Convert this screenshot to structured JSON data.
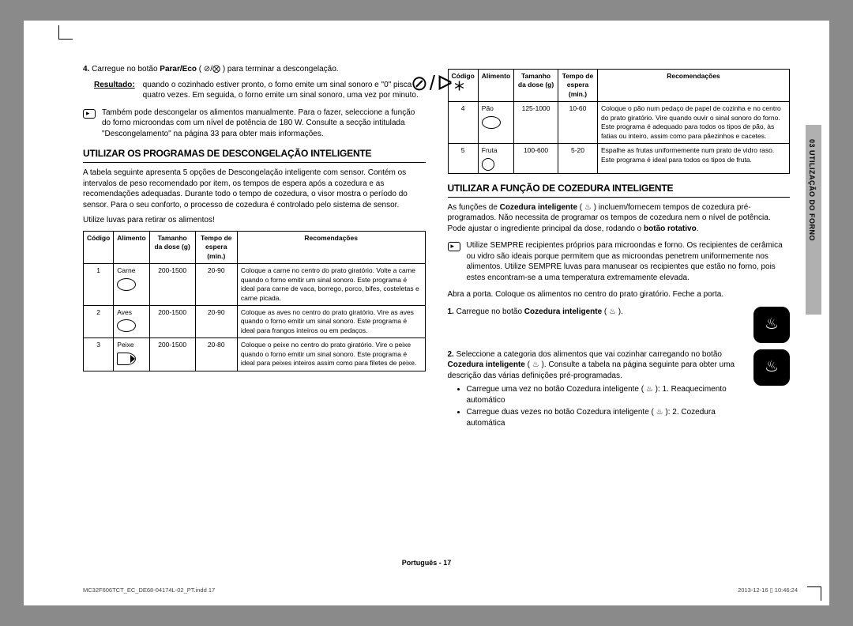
{
  "left": {
    "step4_num": "4.",
    "step4_pre": "Carregue no botão ",
    "step4_bold": "Parar/Eco",
    "step4_post": " ( ⊘/⨂ ) para terminar a descongelação.",
    "result_label": "Resultado:",
    "result_text": "quando o cozinhado estiver pronto, o forno emite um sinal sonoro e \"0\" pisca quatro vezes. Em seguida, o forno emite um sinal sonoro, uma vez por minuto.",
    "note": "Também pode descongelar os alimentos manualmente. Para o fazer, seleccione a função do forno microondas com um nível de potência de 180 W. Consulte a secção intitulada \"Descongelamento\" na página 33 para obter mais informações.",
    "h2": "UTILIZAR OS PROGRAMAS DE DESCONGELAÇÃO INTELIGENTE",
    "intro": "A tabela seguinte apresenta 5 opções de Descongelação inteligente com sensor. Contém os intervalos de peso recomendado por item, os tempos de espera após a cozedura e as recomendações adequadas. Durante todo o tempo de cozedura, o visor mostra o período do sensor. Para o seu conforto, o processo de cozedura é controlado pelo sistema de sensor.",
    "intro2": "Utilize luvas para retirar os alimentos!",
    "top_btn_glyph": "⊘/ᐅ⁎"
  },
  "headers": {
    "c0": "Código",
    "c1": "Alimento",
    "c2": "Tamanho da dose (g)",
    "c3": "Tempo de espera (min.)",
    "c4": "Recomendações"
  },
  "rows_left": [
    {
      "code": "1",
      "food": "Carne",
      "dose": "200-1500",
      "wait": "20-90",
      "rec": "Coloque a carne no centro do prato giratório. Volte a carne quando o forno emitir um sinal sonoro. Este programa é ideal para carne de vaca, borrego, porco, bifes, costeletas e carne picada."
    },
    {
      "code": "2",
      "food": "Aves",
      "dose": "200-1500",
      "wait": "20-90",
      "rec": "Coloque as aves no centro do prato giratório. Vire as aves quando o forno emitir um sinal sonoro. Este programa é ideal para frangos inteiros ou em pedaços."
    },
    {
      "code": "3",
      "food": "Peixe",
      "dose": "200-1500",
      "wait": "20-80",
      "rec": "Coloque o peixe no centro do prato giratório. Vire o peixe quando o forno emitir um sinal sonoro. Este programa é ideal para peixes inteiros assim como para filetes de peixe."
    }
  ],
  "rows_right": [
    {
      "code": "4",
      "food": "Pão",
      "dose": "125-1000",
      "wait": "10-60",
      "rec": "Coloque o pão num pedaço de papel de cozinha e no centro do prato giratório. Vire quando ouvir o sinal sonoro do forno. Este programa é adequado para todos os tipos de pão, às fatias ou inteiro, assim como para pãezinhos e cacetes."
    },
    {
      "code": "5",
      "food": "Fruta",
      "dose": "100-600",
      "wait": "5-20",
      "rec": "Espalhe as frutas uniformemente num prato de vidro raso. Este programa é ideal para todos os tipos de fruta."
    }
  ],
  "right": {
    "h2": "UTILIZAR A FUNÇÃO DE COZEDURA INTELIGENTE",
    "intro_a": "As funções de ",
    "intro_b": "Cozedura inteligente",
    "intro_c": " ( ♨ ) incluem/fornecem tempos de cozedura pré-programados. Não necessita de programar os tempos de cozedura nem o nível de potência. Pode ajustar o ingrediente principal da dose, rodando o ",
    "intro_d": "botão rotativo",
    "intro_e": ".",
    "note2": "Utilize SEMPRE recipientes próprios para microondas e forno. Os recipientes de cerâmica ou vidro são ideais porque permitem que as microondas penetrem uniformemente nos alimentos. Utilize SEMPRE luvas para manusear os recipientes que estão no forno, pois estes encontram-se a uma temperatura extremamente elevada.",
    "para_open": "Abra a porta. Coloque os alimentos no centro do prato giratório. Feche a porta.",
    "s1_num": "1.",
    "s1_a": "Carregue no botão ",
    "s1_b": "Cozedura inteligente",
    "s1_c": " ( ♨ ).",
    "btn_glyph": "♨",
    "s2_num": "2.",
    "s2_a": "Seleccione a categoria dos alimentos que vai cozinhar carregando no botão ",
    "s2_b": "Cozedura inteligente",
    "s2_c": " ( ♨ ). Consulte a tabela na página seguinte para obter uma descrição das várias definições pré-programadas.",
    "bul1": "Carregue uma vez no botão Cozedura inteligente ( ♨ ): 1. Reaquecimento automático",
    "bul2": "Carregue duas vezes no botão Cozedura inteligente ( ♨ ): 2. Cozedura automática"
  },
  "tab": "03  UTILIZAÇÃO DO FORNO",
  "footer": "Português - 17",
  "print_left": "MC32F606TCT_EC_DE68-04174L-02_PT.indd   17",
  "print_right": "2013-12-16   ▯ 10:46:24"
}
